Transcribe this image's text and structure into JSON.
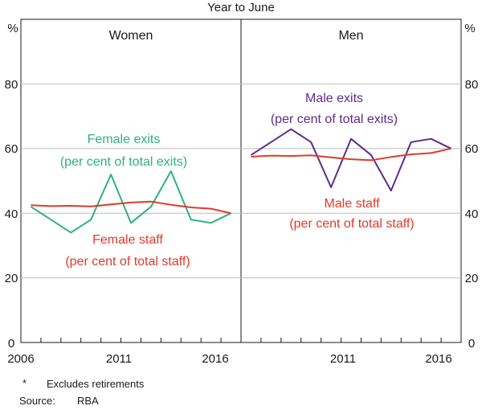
{
  "chart_data": {
    "type": "line",
    "title": "Year to June",
    "ylabel": "%",
    "ylim": [
      0,
      100
    ],
    "yticks": [
      0,
      20,
      40,
      60,
      80
    ],
    "xlim": [
      2006,
      2017
    ],
    "xtick_labels": [
      "2006",
      "2011",
      "2016"
    ],
    "right_xtick_labels": [
      "2011",
      "2016"
    ],
    "yaxis_labels_left": [
      "%",
      "80",
      "60",
      "40",
      "20",
      "0"
    ],
    "yaxis_labels_right": [
      "%",
      "80",
      "60",
      "40",
      "20",
      "0"
    ],
    "panels": [
      {
        "title": "Women",
        "series": [
          {
            "name": "Female exits",
            "label_lines": [
              "Female exits",
              "(per cent of total exits)"
            ],
            "color": "#2db37a",
            "x": [
              2006,
              2007,
              2008,
              2009,
              2010,
              2011,
              2012,
              2013,
              2014,
              2015,
              2016
            ],
            "values": [
              42,
              38,
              34,
              38,
              52,
              37,
              42,
              53,
              38,
              37,
              40
            ]
          },
          {
            "name": "Female staff",
            "label_lines": [
              "Female staff",
              "(per cent of total staff)"
            ],
            "color": "#e03a2a",
            "x": [
              2006,
              2007,
              2008,
              2009,
              2010,
              2011,
              2012,
              2013,
              2014,
              2015,
              2016
            ],
            "values": [
              42.5,
              42.2,
              42.3,
              42.1,
              42.7,
              43.3,
              43.6,
              42.6,
              41.8,
              41.4,
              40.0
            ]
          }
        ]
      },
      {
        "title": "Men",
        "series": [
          {
            "name": "Male exits",
            "label_lines": [
              "Male exits",
              "(per cent of total exits)"
            ],
            "color": "#5b2c8f",
            "x": [
              2006,
              2007,
              2008,
              2009,
              2010,
              2011,
              2012,
              2013,
              2014,
              2015,
              2016
            ],
            "values": [
              58,
              62,
              66,
              62,
              48,
              63,
              58,
              47,
              62,
              63,
              60
            ]
          },
          {
            "name": "Male staff",
            "label_lines": [
              "Male staff",
              "(per cent of total staff)"
            ],
            "color": "#e03a2a",
            "x": [
              2006,
              2007,
              2008,
              2009,
              2010,
              2011,
              2012,
              2013,
              2014,
              2015,
              2016
            ],
            "values": [
              57.5,
              57.8,
              57.7,
              57.9,
              57.3,
              56.7,
              56.4,
              57.4,
              58.2,
              58.6,
              60.0
            ]
          }
        ]
      }
    ],
    "footnotes": [
      {
        "marker": "*",
        "text": "Excludes retirements"
      },
      {
        "marker": "Source:",
        "text": "RBA"
      }
    ]
  }
}
